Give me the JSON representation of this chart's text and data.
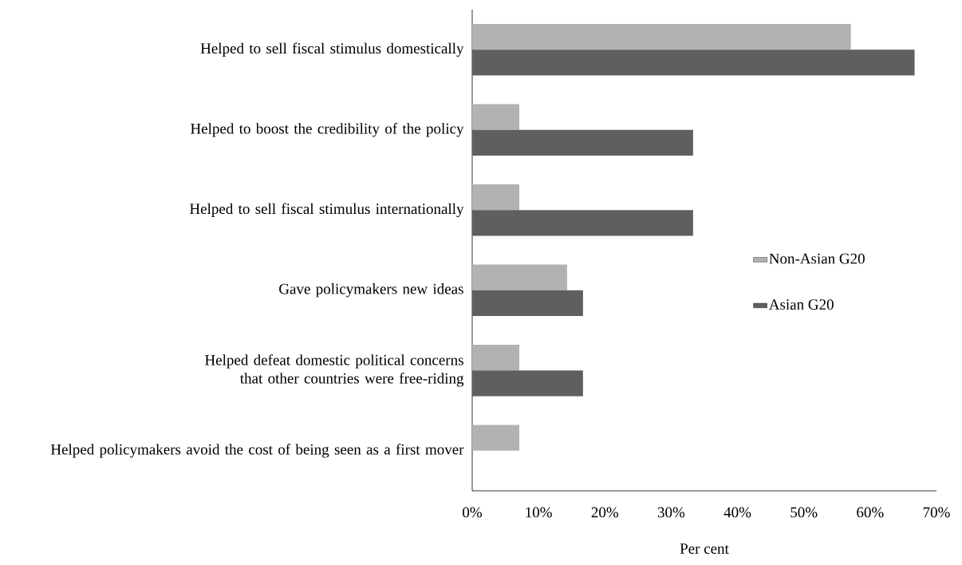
{
  "chart_data": {
    "type": "bar",
    "orientation": "horizontal",
    "xlabel": "Per cent",
    "categories": [
      "Helped to sell fiscal stimulus domestically",
      "Helped to boost the credibility of the policy",
      "Helped to sell fiscal stimulus internationally",
      "Gave policymakers new ideas",
      "Helped defeat domestic political concerns that other countries were free-riding",
      "Helped policymakers avoid the cost of being seen as a first mover"
    ],
    "series": [
      {
        "name": "Non-Asian G20",
        "color": "#b2b2b2",
        "values": [
          57.1,
          7.1,
          7.1,
          14.3,
          7.1,
          7.1
        ]
      },
      {
        "name": "Asian G20",
        "color": "#5f5f5f",
        "values": [
          66.7,
          33.3,
          33.3,
          16.7,
          16.7,
          0
        ]
      }
    ],
    "xlim": [
      0,
      70
    ],
    "xticks": [
      {
        "value": 0,
        "label": "0%"
      },
      {
        "value": 10,
        "label": "10%"
      },
      {
        "value": 20,
        "label": "20%"
      },
      {
        "value": 30,
        "label": "30%"
      },
      {
        "value": 40,
        "label": "40%"
      },
      {
        "value": 50,
        "label": "50%"
      },
      {
        "value": 60,
        "label": "60%"
      },
      {
        "value": 70,
        "label": "70%"
      }
    ],
    "grid": false,
    "legend": "right"
  }
}
